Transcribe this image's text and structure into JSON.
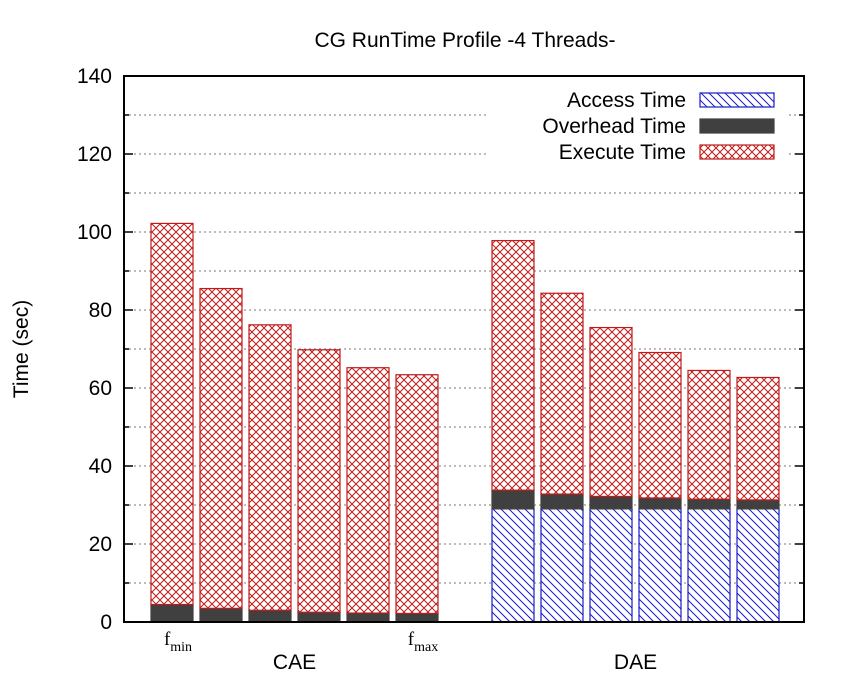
{
  "chart_data": {
    "type": "bar",
    "stacked": true,
    "title": "CG RunTime Profile -4 Threads-",
    "ylabel": "Time (sec)",
    "ylim": [
      0,
      140
    ],
    "yticks": [
      0,
      20,
      40,
      60,
      80,
      100,
      120,
      140
    ],
    "grid": true,
    "legend_position": "top-right",
    "groups": [
      {
        "name": "CAE",
        "first_label": {
          "main": "f",
          "sub": "min"
        },
        "last_label": {
          "main": "f",
          "sub": "max"
        },
        "access": [
          0,
          0,
          0,
          0,
          0,
          0
        ],
        "overhead": [
          4.5,
          3.5,
          3,
          2.5,
          2.3,
          2.2
        ],
        "execute": [
          97.7,
          82.0,
          73.2,
          67.3,
          62.9,
          61.2
        ]
      },
      {
        "name": "DAE",
        "access": [
          29,
          29,
          29,
          29,
          29,
          29
        ],
        "overhead": [
          4.8,
          3.8,
          3.2,
          2.8,
          2.5,
          2.3
        ],
        "execute": [
          64.0,
          51.5,
          43.3,
          37.3,
          33.0,
          31.4
        ]
      }
    ],
    "series": [
      {
        "name": "Access Time",
        "color": "#0000bb",
        "pattern": "diagonal-hatch"
      },
      {
        "name": "Overhead Time",
        "color": "#404040",
        "pattern": "solid"
      },
      {
        "name": "Execute Time",
        "color": "#bb1111",
        "pattern": "crosshatch"
      }
    ]
  }
}
